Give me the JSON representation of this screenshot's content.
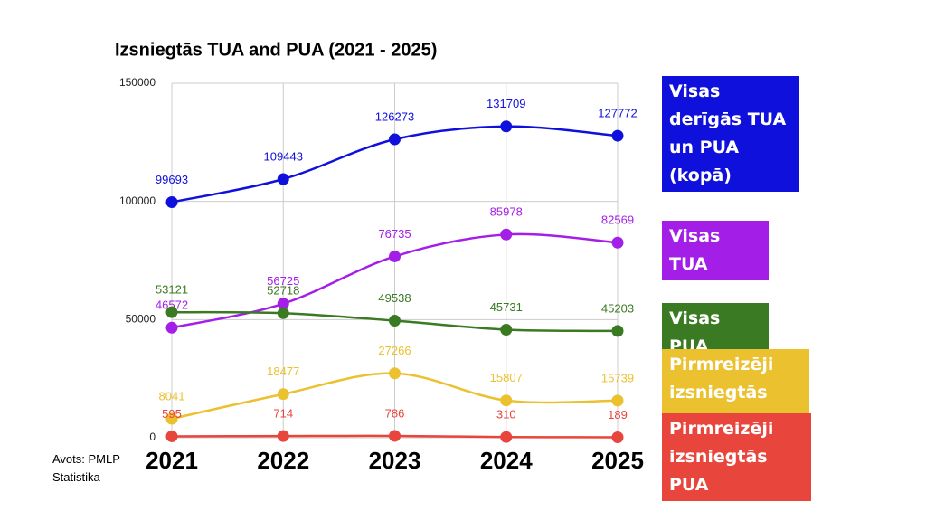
{
  "chart_data": {
    "type": "line",
    "title": "Izsniegtās TUA and PUA (2021 - 2025)",
    "categories": [
      "2021",
      "2022",
      "2023",
      "2024",
      "2025"
    ],
    "series": [
      {
        "name": "Visas derīgās TUA un PUA (kopā)",
        "color": "#1010dc",
        "values": [
          99693,
          109443,
          126273,
          131709,
          127772
        ]
      },
      {
        "name": "Visas TUA",
        "color": "#a31fe8",
        "values": [
          46572,
          56725,
          76735,
          85978,
          82569
        ]
      },
      {
        "name": "Visas PUA",
        "color": "#3a7a22",
        "values": [
          53121,
          52718,
          49538,
          45731,
          45203
        ]
      },
      {
        "name": "Pirmreizēji izsniegtās TUA",
        "color": "#ebc12f",
        "values": [
          8041,
          18477,
          27266,
          15807,
          15739
        ]
      },
      {
        "name": "Pirmreizēji izsniegtās PUA",
        "color": "#e8453c",
        "values": [
          595,
          714,
          786,
          310,
          189
        ]
      }
    ],
    "ylim": [
      0,
      150000
    ],
    "yticks": [
      0,
      50000,
      100000,
      150000
    ],
    "grid": true,
    "smooth": true,
    "legend": "right",
    "source": "Avots: PMLP Statistika"
  }
}
